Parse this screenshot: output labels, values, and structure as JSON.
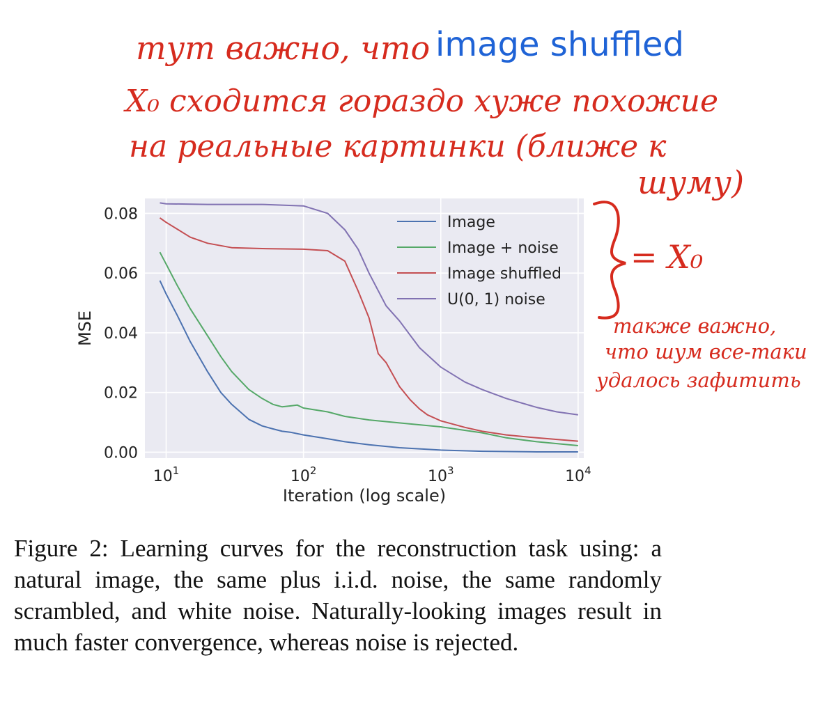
{
  "annotations": {
    "line1_red": "тут важно, что",
    "line1_blue": "image shuffled",
    "line2": "X₀ сходится гораздо хуже похожие",
    "line3": "на реальные картинки (ближе к",
    "line4": "шуму)",
    "brace_label": "= X₀",
    "note_line1": "также важно,",
    "note_line2": "что шум все-таки",
    "note_line3": "удалось зафитить",
    "color_red": "#d62b1e",
    "color_blue": "#1f63d6"
  },
  "chart_data": {
    "type": "line",
    "xlabel": "Iteration (log scale)",
    "ylabel": "MSE",
    "xscale": "log",
    "xlim": [
      7,
      11000
    ],
    "ylim": [
      -0.002,
      0.085
    ],
    "x_ticks": [
      {
        "value": 10,
        "base": "10",
        "exp": "1"
      },
      {
        "value": 100,
        "base": "10",
        "exp": "2"
      },
      {
        "value": 1000,
        "base": "10",
        "exp": "3"
      },
      {
        "value": 10000,
        "base": "10",
        "exp": "4"
      }
    ],
    "y_ticks": [
      "0.00",
      "0.02",
      "0.04",
      "0.06",
      "0.08"
    ],
    "y_tick_values": [
      0,
      0.02,
      0.04,
      0.06,
      0.08
    ],
    "grid": true,
    "background": "#eaeaf2",
    "legend_position": "top-right",
    "series": [
      {
        "name": "Image",
        "color": "#4c72b0",
        "x": [
          9,
          10,
          12,
          15,
          20,
          25,
          30,
          40,
          50,
          60,
          70,
          80,
          100,
          150,
          200,
          300,
          500,
          1000,
          2000,
          5000,
          10000
        ],
        "y": [
          0.0575,
          0.053,
          0.046,
          0.037,
          0.027,
          0.02,
          0.016,
          0.011,
          0.0088,
          0.0078,
          0.007,
          0.0067,
          0.0058,
          0.0045,
          0.0035,
          0.0025,
          0.0015,
          0.0007,
          0.0003,
          0.0001,
          0.0001
        ]
      },
      {
        "name": "Image + noise",
        "color": "#55a868",
        "x": [
          9,
          10,
          12,
          15,
          20,
          25,
          30,
          40,
          50,
          60,
          70,
          80,
          90,
          100,
          150,
          200,
          300,
          500,
          1000,
          2000,
          3000,
          5000,
          10000
        ],
        "y": [
          0.067,
          0.063,
          0.056,
          0.048,
          0.039,
          0.032,
          0.027,
          0.021,
          0.018,
          0.016,
          0.0152,
          0.0155,
          0.0158,
          0.0148,
          0.0135,
          0.012,
          0.0108,
          0.0098,
          0.0085,
          0.0065,
          0.0048,
          0.0035,
          0.0022
        ]
      },
      {
        "name": "Image shuffled",
        "color": "#c44e52",
        "x": [
          9,
          10,
          15,
          20,
          30,
          50,
          100,
          150,
          200,
          250,
          300,
          350,
          400,
          500,
          600,
          700,
          800,
          1000,
          1500,
          2000,
          3000,
          5000,
          10000
        ],
        "y": [
          0.0785,
          0.077,
          0.072,
          0.07,
          0.0685,
          0.0682,
          0.068,
          0.0675,
          0.064,
          0.054,
          0.045,
          0.033,
          0.03,
          0.022,
          0.0175,
          0.0145,
          0.0125,
          0.0105,
          0.0083,
          0.007,
          0.0058,
          0.0048,
          0.0037
        ]
      },
      {
        "name": "U(0, 1) noise",
        "color": "#8172b2",
        "x": [
          9,
          10,
          20,
          50,
          100,
          150,
          200,
          250,
          300,
          400,
          500,
          700,
          1000,
          1500,
          2000,
          3000,
          5000,
          7000,
          10000
        ],
        "y": [
          0.0835,
          0.0832,
          0.083,
          0.083,
          0.0825,
          0.08,
          0.0745,
          0.068,
          0.06,
          0.049,
          0.044,
          0.035,
          0.0285,
          0.0235,
          0.021,
          0.018,
          0.015,
          0.0135,
          0.0125
        ]
      }
    ]
  },
  "caption": "Figure 2: Learning curves for the reconstruction task using: a natural image, the same plus i.i.d. noise, the same randomly scrambled, and white noise. Naturally-looking images result in much faster convergence, whereas noise is rejected."
}
